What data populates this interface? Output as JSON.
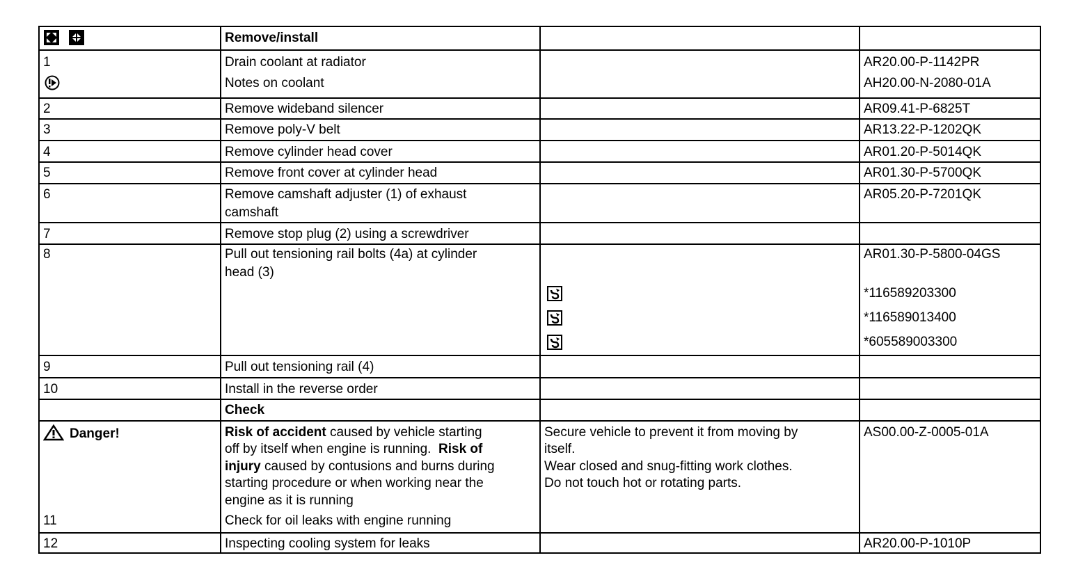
{
  "header": {
    "icons": [
      "expand-icon",
      "collapse-icon"
    ],
    "title": "Remove/install"
  },
  "rows": [
    {
      "step": "1",
      "lines": [
        "Drain coolant at radiator",
        "Notes on coolant"
      ],
      "refs": [
        "AR20.00-P-1142PR",
        "AH20.00-N-2080-01A"
      ],
      "note_icon": "notes-icon"
    },
    {
      "step": "2",
      "text": "Remove wideband silencer",
      "ref": "AR09.41-P-6825T"
    },
    {
      "step": "3",
      "text": "Remove poly-V belt",
      "ref": "AR13.22-P-1202QK"
    },
    {
      "step": "4",
      "text": "Remove cylinder head cover",
      "ref": "AR01.20-P-5014QK"
    },
    {
      "step": "5",
      "text": "Remove front cover at cylinder head",
      "ref": "AR01.30-P-5700QK"
    },
    {
      "step": "6",
      "lines": [
        "Remove camshaft adjuster (1) of exhaust",
        "camshaft"
      ],
      "ref": "AR05.20-P-7201QK"
    },
    {
      "step": "7",
      "text": "Remove stop plug (2) using a screwdriver",
      "ref": ""
    },
    {
      "step": "8",
      "lines": [
        "Pull out tensioning rail bolts (4a) at cylinder",
        "head (3)"
      ],
      "ref": "AR01.30-P-5800-04GS",
      "tools": [
        {
          "icon": "special-tool-icon",
          "number": "*116589203300"
        },
        {
          "icon": "special-tool-icon",
          "number": "*116589013400"
        },
        {
          "icon": "special-tool-icon",
          "number": "*605589003300"
        }
      ]
    },
    {
      "step": "9",
      "text": "Pull out tensioning rail (4)",
      "ref": ""
    },
    {
      "step": "10",
      "text": "Install in the reverse order",
      "ref": ""
    }
  ],
  "check": {
    "title": "Check"
  },
  "danger": {
    "label": "Danger!",
    "icon": "warning-triangle-icon",
    "risk1_bold": "Risk of accident",
    "risk1_rest": " caused by vehicle starting",
    "line2_a": "off by itself when engine is running.",
    "line2_bold": "Risk of",
    "line3_bold": "injury",
    "line3_rest": " caused by contusions and burns during",
    "line4": "starting procedure or when working near the",
    "line5": "engine as it is running",
    "measures": [
      "Secure vehicle to prevent it from moving by",
      "itself.",
      "Wear closed and snug-fitting work clothes.",
      "Do not touch hot or rotating parts."
    ],
    "ref": "AS00.00-Z-0005-01A",
    "step": "11",
    "step_text": "Check for oil leaks with engine running"
  },
  "row12": {
    "step": "12",
    "text": "Inspecting cooling system for leaks",
    "ref": "AR20.00-P-1010P"
  }
}
